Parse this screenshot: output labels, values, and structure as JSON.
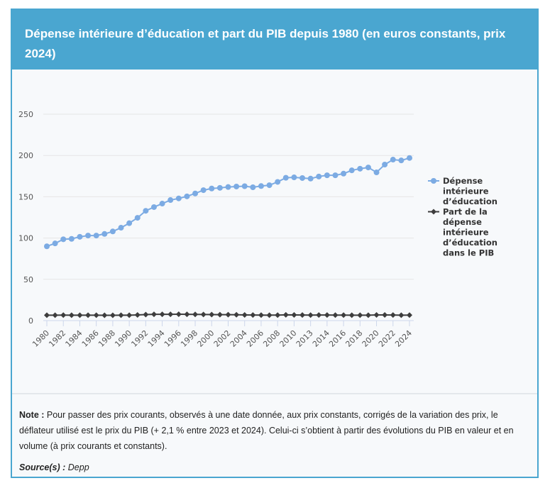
{
  "header": {
    "title": "Dépense intérieure d’éducation et part du PIB depuis 1980 (en euros constants, prix 2024)"
  },
  "notes": {
    "note_label": "Note :",
    "note_text": " Pour passer des prix courants, observés à une date donnée, aux prix constants, corrigés de la variation des prix, le déflateur utilisé est le prix du PIB (+ 2,1 % entre 2023 et 2024). Celui-ci s’obtient à partir des évolutions du PIB en valeur et en volume (à prix courants et constants).",
    "source_label": "Source(s) :",
    "source_text": " Depp"
  },
  "chart_data": {
    "type": "line",
    "title": "Dépense intérieure d’éducation et part du PIB depuis 1980 (en euros constants, prix 2024)",
    "xlabel": "",
    "ylabel": "",
    "ylim": [
      0,
      250
    ],
    "yticks": [
      0,
      50,
      100,
      150,
      200,
      250
    ],
    "grid": true,
    "legend_position": "right",
    "categories": [
      "1980",
      "1981",
      "1982",
      "1983",
      "1984",
      "1985",
      "1986",
      "1987",
      "1988",
      "1989",
      "1990",
      "1991",
      "1992",
      "1993",
      "1994",
      "1995",
      "1996",
      "1997",
      "1998",
      "1999",
      "2000",
      "2001",
      "2002",
      "2003",
      "2004",
      "2005",
      "2006",
      "2007",
      "2008",
      "2009",
      "2010",
      "2011",
      "2013",
      "2013",
      "2014",
      "2015",
      "2016",
      "2017",
      "2018",
      "2019",
      "2020",
      "2021",
      "2022",
      "2023",
      "2024"
    ],
    "x_tick_labels_shown": [
      "1980",
      "1982",
      "1984",
      "1986",
      "1988",
      "1990",
      "1992",
      "1994",
      "1996",
      "1998",
      "2000",
      "2002",
      "2004",
      "2006",
      "2008",
      "2010",
      "2013",
      "2014",
      "2016",
      "2018",
      "2020",
      "2022",
      "2024"
    ],
    "series": [
      {
        "name": "Dépense intérieure d’éducation",
        "color": "#7cabe3",
        "marker": "circle",
        "values": [
          90,
          93.5,
          98.5,
          99,
          101.5,
          103,
          103,
          105,
          108,
          112.5,
          118,
          124.5,
          133,
          137.5,
          141.7,
          146,
          148,
          150.5,
          154,
          158,
          160,
          160.8,
          161.8,
          162.4,
          162.8,
          161.5,
          163,
          164,
          168,
          173,
          173.5,
          172.7,
          172,
          174.5,
          176,
          176,
          178,
          182,
          184,
          185.5,
          179.5,
          189,
          195,
          194,
          197
        ]
      },
      {
        "name": "Part de la dépense intérieure d’éducation dans le PIB",
        "color": "#3d3d3d",
        "marker": "diamond",
        "values": [
          6.5,
          6.6,
          6.7,
          6.6,
          6.6,
          6.6,
          6.5,
          6.4,
          6.4,
          6.5,
          6.6,
          6.9,
          7.3,
          7.6,
          7.6,
          7.6,
          7.7,
          7.6,
          7.5,
          7.4,
          7.3,
          7.2,
          7.2,
          7.1,
          6.9,
          6.8,
          6.7,
          6.6,
          6.7,
          7.0,
          6.9,
          6.8,
          6.7,
          6.8,
          6.8,
          6.7,
          6.7,
          6.6,
          6.6,
          6.6,
          6.9,
          6.9,
          6.8,
          6.6,
          6.7
        ]
      }
    ]
  }
}
